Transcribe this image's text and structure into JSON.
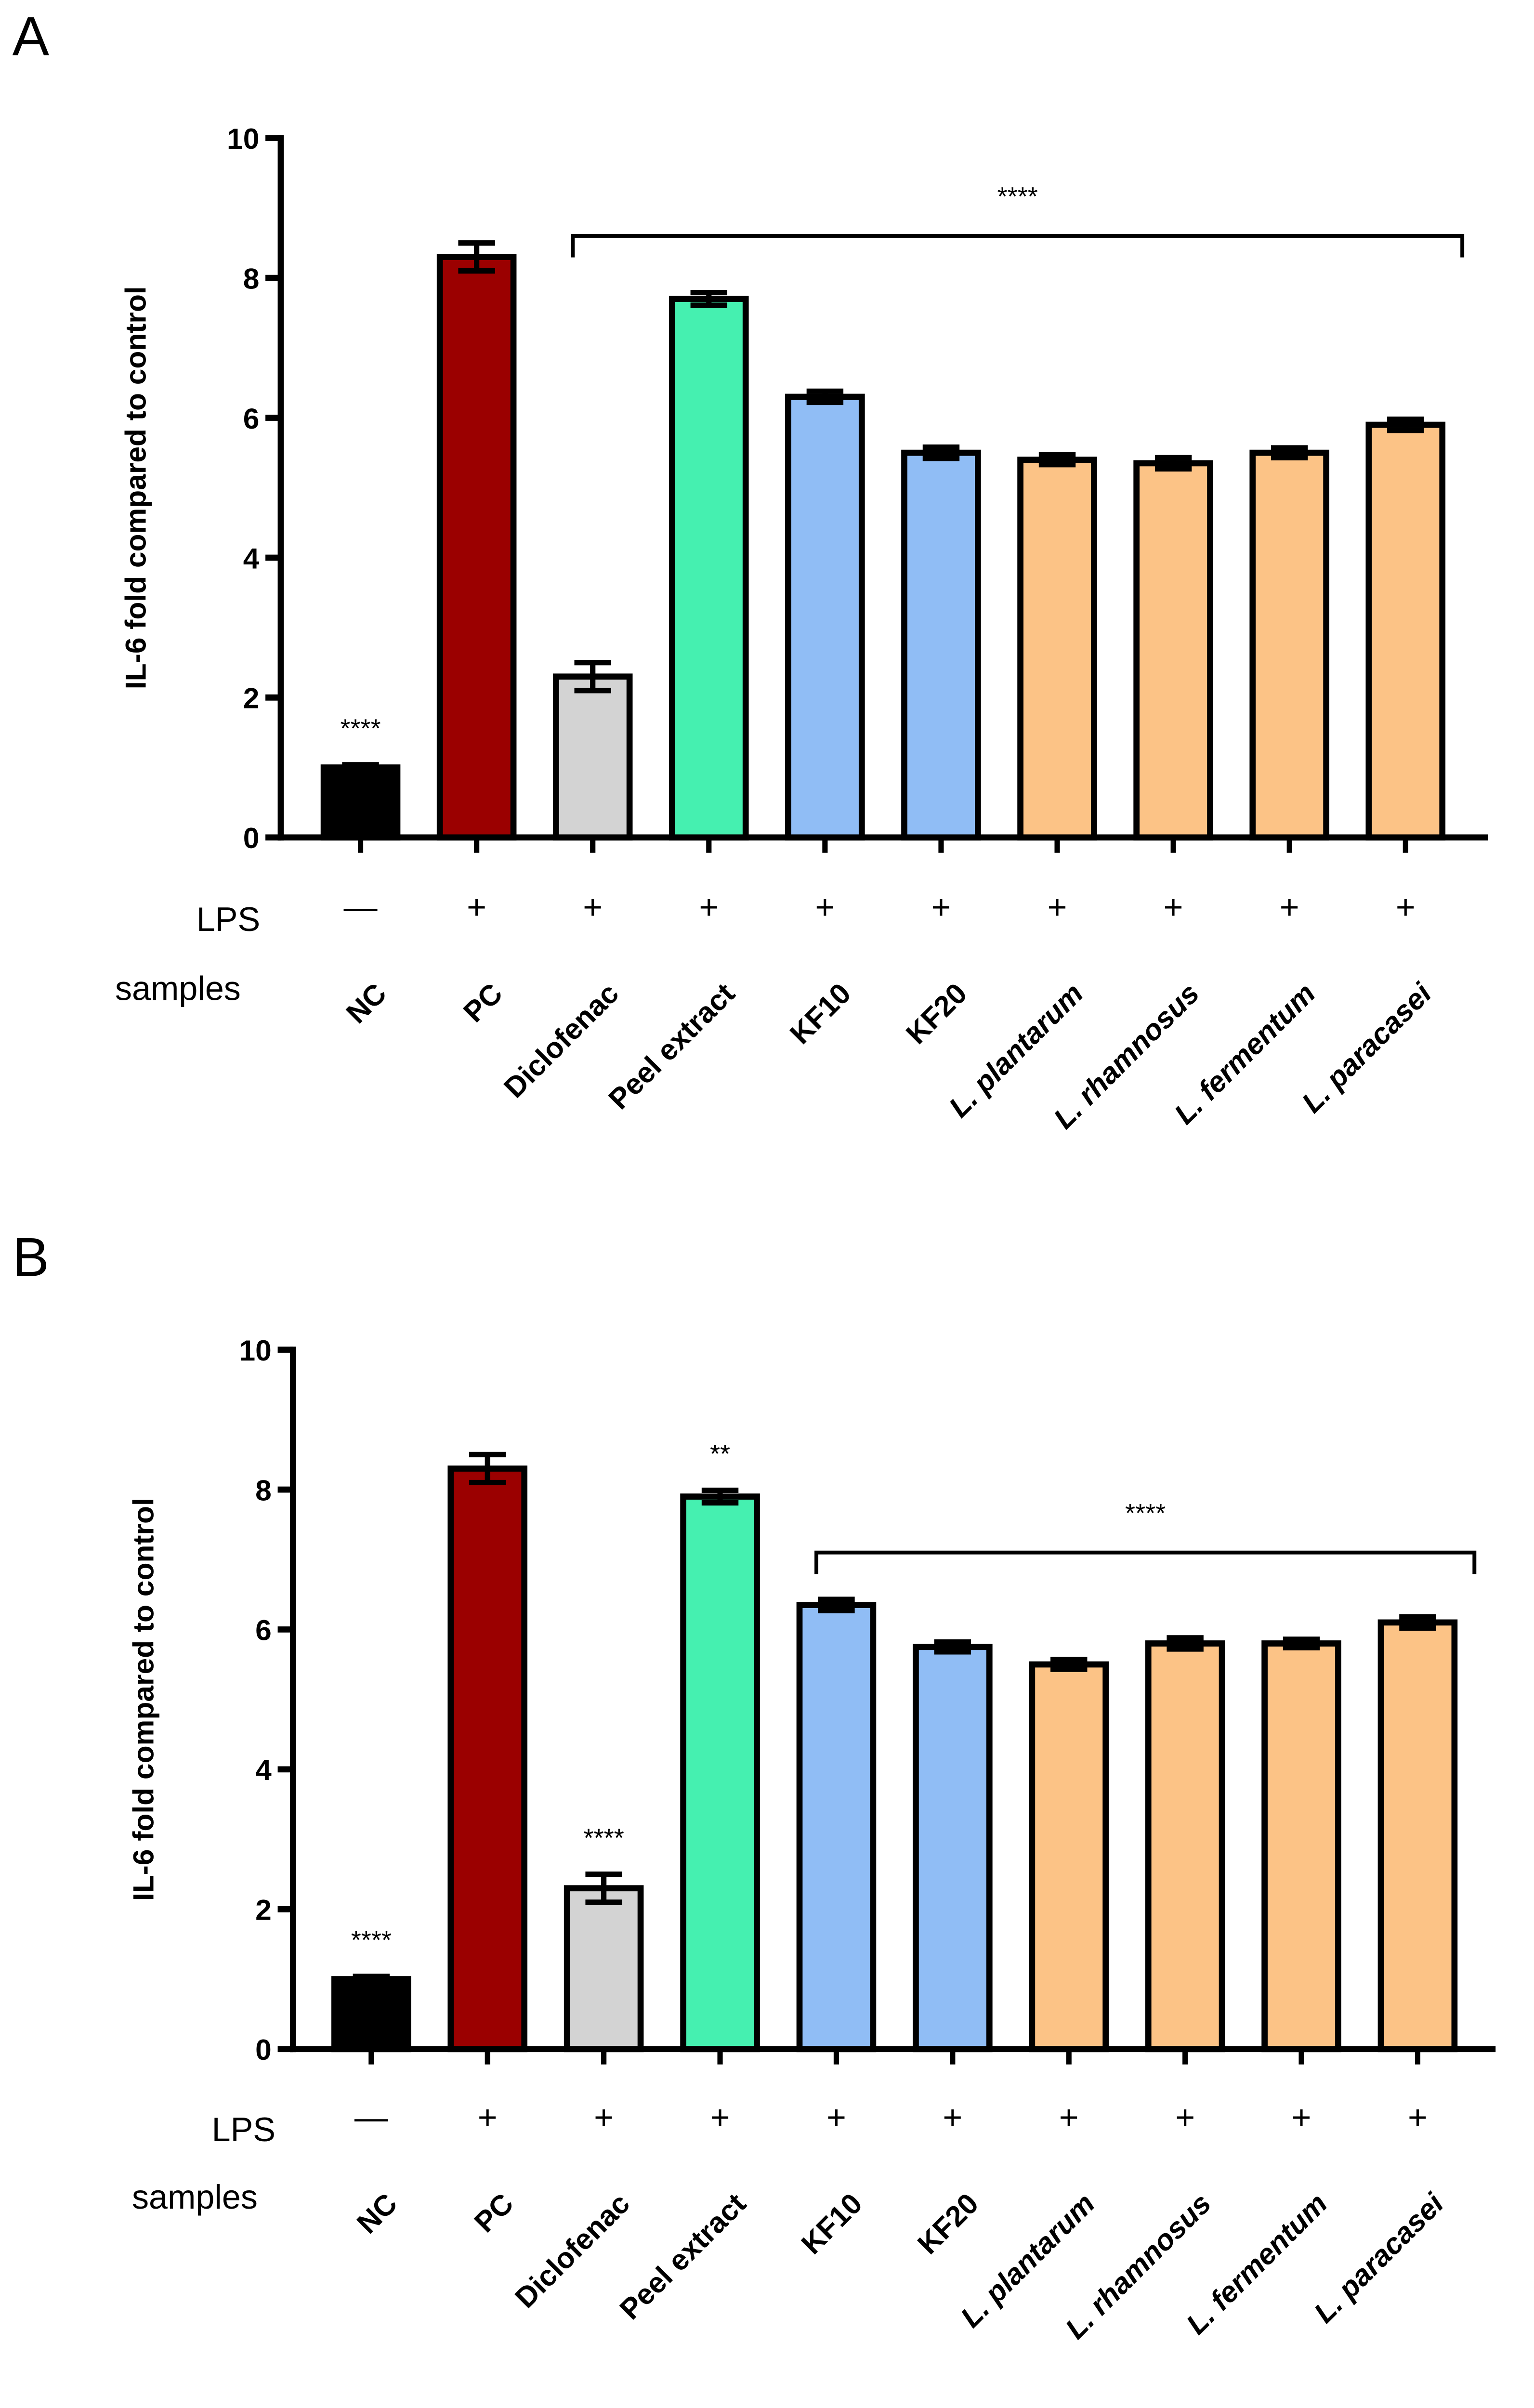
{
  "chart_data": [
    {
      "panel_label": "A",
      "type": "bar",
      "ylabel": "IL-6 fold compared to control",
      "ylim": [
        0,
        10
      ],
      "yticks": [
        "0",
        "2",
        "4",
        "6",
        "8",
        "10"
      ],
      "row_labels": {
        "lps": "LPS",
        "samples": "samples"
      },
      "categories": [
        "NC",
        "PC",
        "Diclofenac",
        "Peel extract",
        "KF10",
        "KF20",
        "L. plantarum",
        "L. rhamnosus",
        "L. fermentum",
        "L. paracasei"
      ],
      "lps": [
        "—",
        "+",
        "+",
        "+",
        "+",
        "+",
        "+",
        "+",
        "+",
        "+"
      ],
      "values": [
        1.0,
        8.3,
        2.3,
        7.7,
        6.3,
        5.5,
        5.4,
        5.35,
        5.5,
        5.9
      ],
      "errors": [
        0.04,
        0.2,
        0.2,
        0.09,
        0.08,
        0.08,
        0.07,
        0.08,
        0.07,
        0.08
      ],
      "colors": [
        "#000000",
        "#9b0000",
        "#d3d3d3",
        "#45f0b0",
        "#90bdf5",
        "#90bdf5",
        "#fcc386",
        "#fcc386",
        "#fcc386",
        "#fcc386"
      ],
      "bar_annotations": [
        {
          "index": 0,
          "text": "****"
        }
      ],
      "bracket": {
        "from_index": 2,
        "to_index": 9,
        "level": 8.6,
        "text": "****"
      }
    },
    {
      "panel_label": "B",
      "type": "bar",
      "ylabel": "IL-6 fold compared to control",
      "ylim": [
        0,
        10
      ],
      "yticks": [
        "0",
        "2",
        "4",
        "6",
        "8",
        "10"
      ],
      "row_labels": {
        "lps": "LPS",
        "samples": "samples"
      },
      "categories": [
        "NC",
        "PC",
        "Diclofenac",
        "Peel extract",
        "KF10",
        "KF20",
        "L. plantarum",
        "L. rhamnosus",
        "L. fermentum",
        "L. paracasei"
      ],
      "lps": [
        "—",
        "+",
        "+",
        "+",
        "+",
        "+",
        "+",
        "+",
        "+",
        "+"
      ],
      "values": [
        1.0,
        8.3,
        2.3,
        7.9,
        6.35,
        5.75,
        5.5,
        5.8,
        5.8,
        6.1
      ],
      "errors": [
        0.04,
        0.2,
        0.2,
        0.09,
        0.08,
        0.07,
        0.07,
        0.08,
        0.06,
        0.08
      ],
      "colors": [
        "#000000",
        "#9b0000",
        "#d3d3d3",
        "#45f0b0",
        "#90bdf5",
        "#90bdf5",
        "#fcc386",
        "#fcc386",
        "#fcc386",
        "#fcc386"
      ],
      "bar_annotations": [
        {
          "index": 0,
          "text": "****"
        },
        {
          "index": 2,
          "text": "****"
        },
        {
          "index": 3,
          "text": "**"
        }
      ],
      "bracket": {
        "from_index": 4,
        "to_index": 9,
        "level": 7.1,
        "text": "****"
      }
    }
  ]
}
